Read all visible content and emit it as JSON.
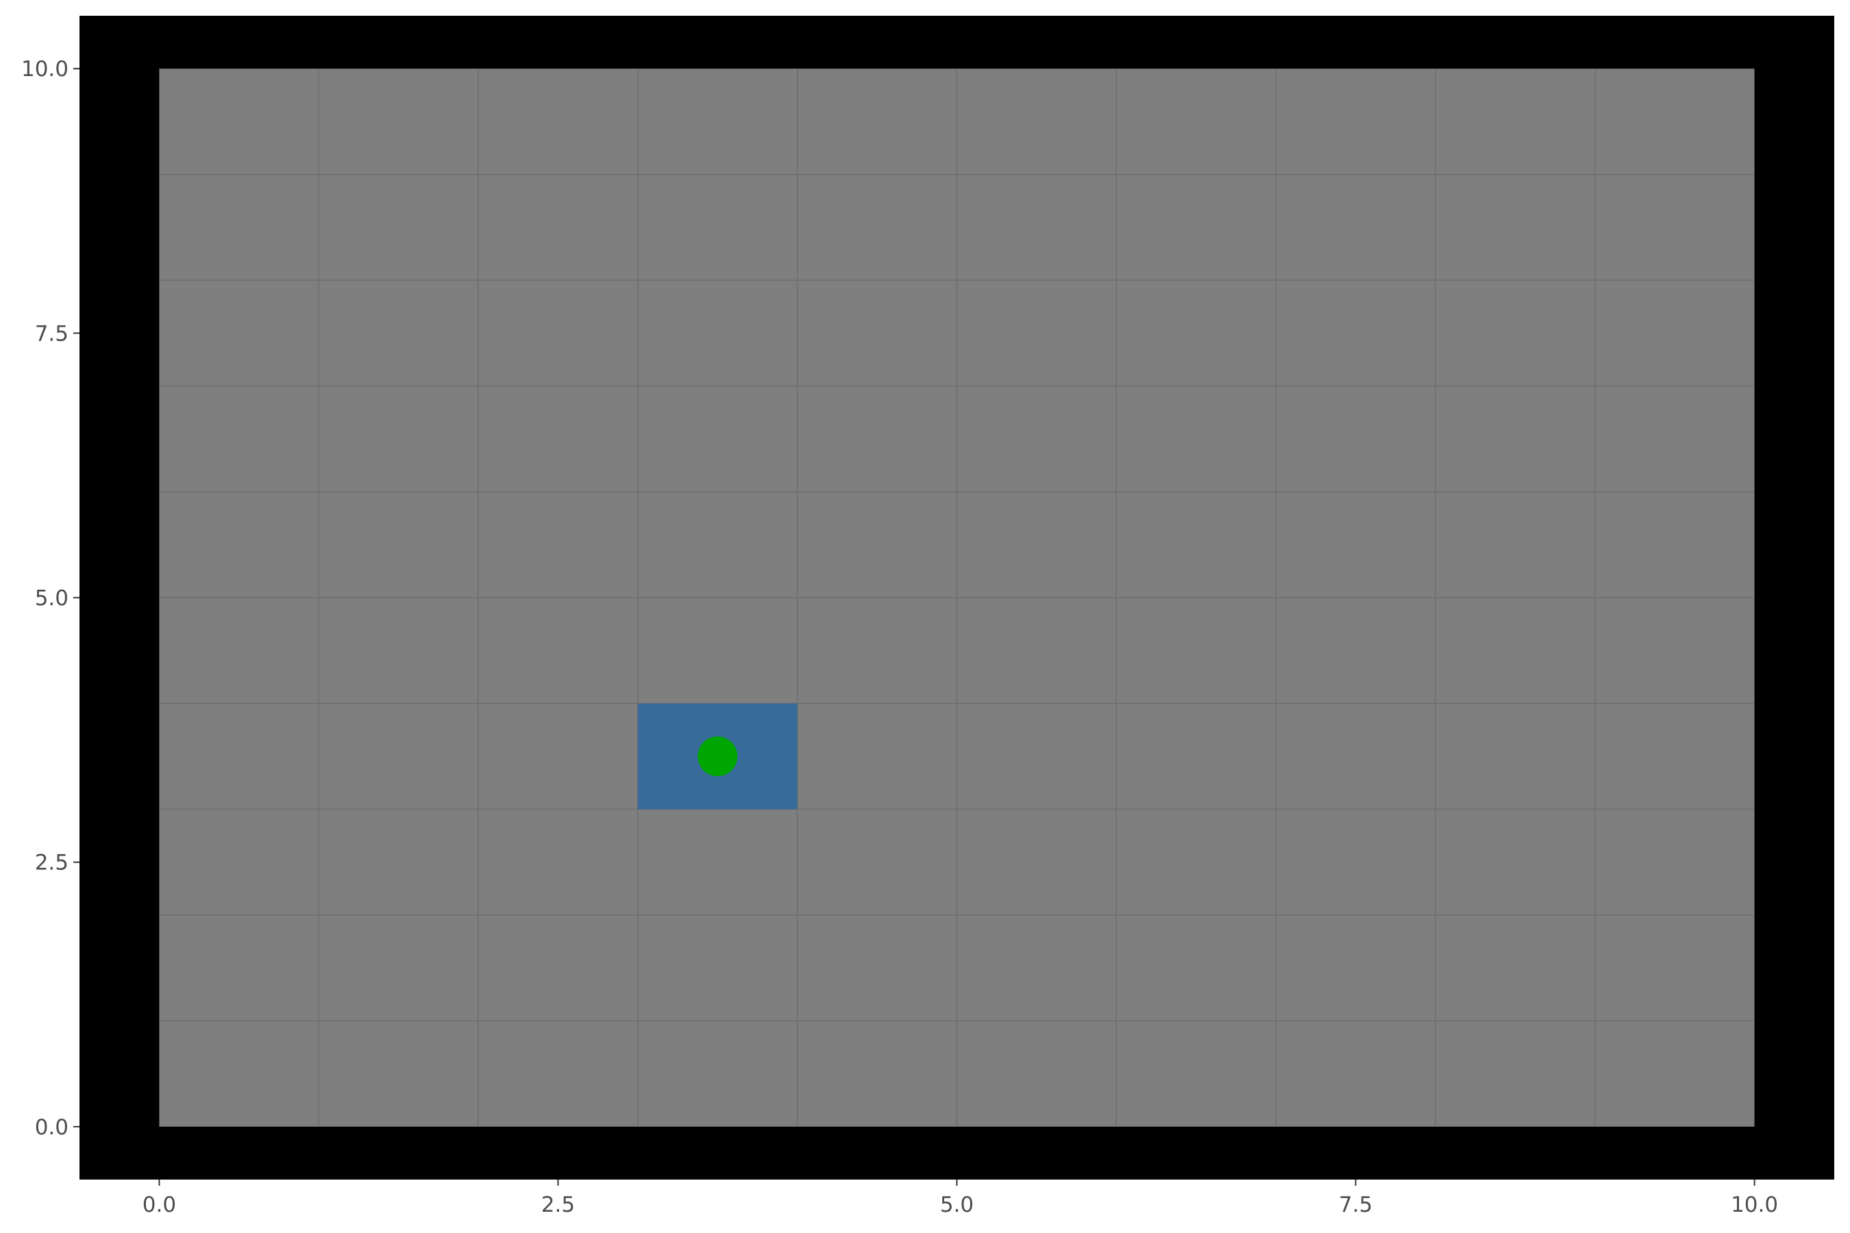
{
  "chart_data": {
    "type": "scatter",
    "title": "",
    "xlabel": "",
    "ylabel": "",
    "xlim": [
      -0.5,
      10.5
    ],
    "ylim": [
      -0.5,
      10.5
    ],
    "x_ticks": [
      0.0,
      2.5,
      5.0,
      7.5,
      10.0
    ],
    "x_tick_labels": [
      "0.0",
      "2.5",
      "5.0",
      "7.5",
      "10.0"
    ],
    "y_ticks": [
      0.0,
      2.5,
      5.0,
      7.5,
      10.0
    ],
    "y_tick_labels": [
      "0.0",
      "2.5",
      "5.0",
      "7.5",
      "10.0"
    ],
    "grid": true,
    "grid_cell": 1,
    "board": {
      "x_range": [
        0,
        10
      ],
      "y_range": [
        0,
        10
      ],
      "wall_color": "#000000",
      "floor_color": "#7f7f7f",
      "grid_color": "#6e6e6e"
    },
    "goal_cell": {
      "x_range": [
        3,
        4
      ],
      "y_range": [
        3,
        4
      ],
      "color": "#366b9a"
    },
    "agent": {
      "x": 3.5,
      "y": 3.5,
      "color": "#00a600"
    }
  }
}
